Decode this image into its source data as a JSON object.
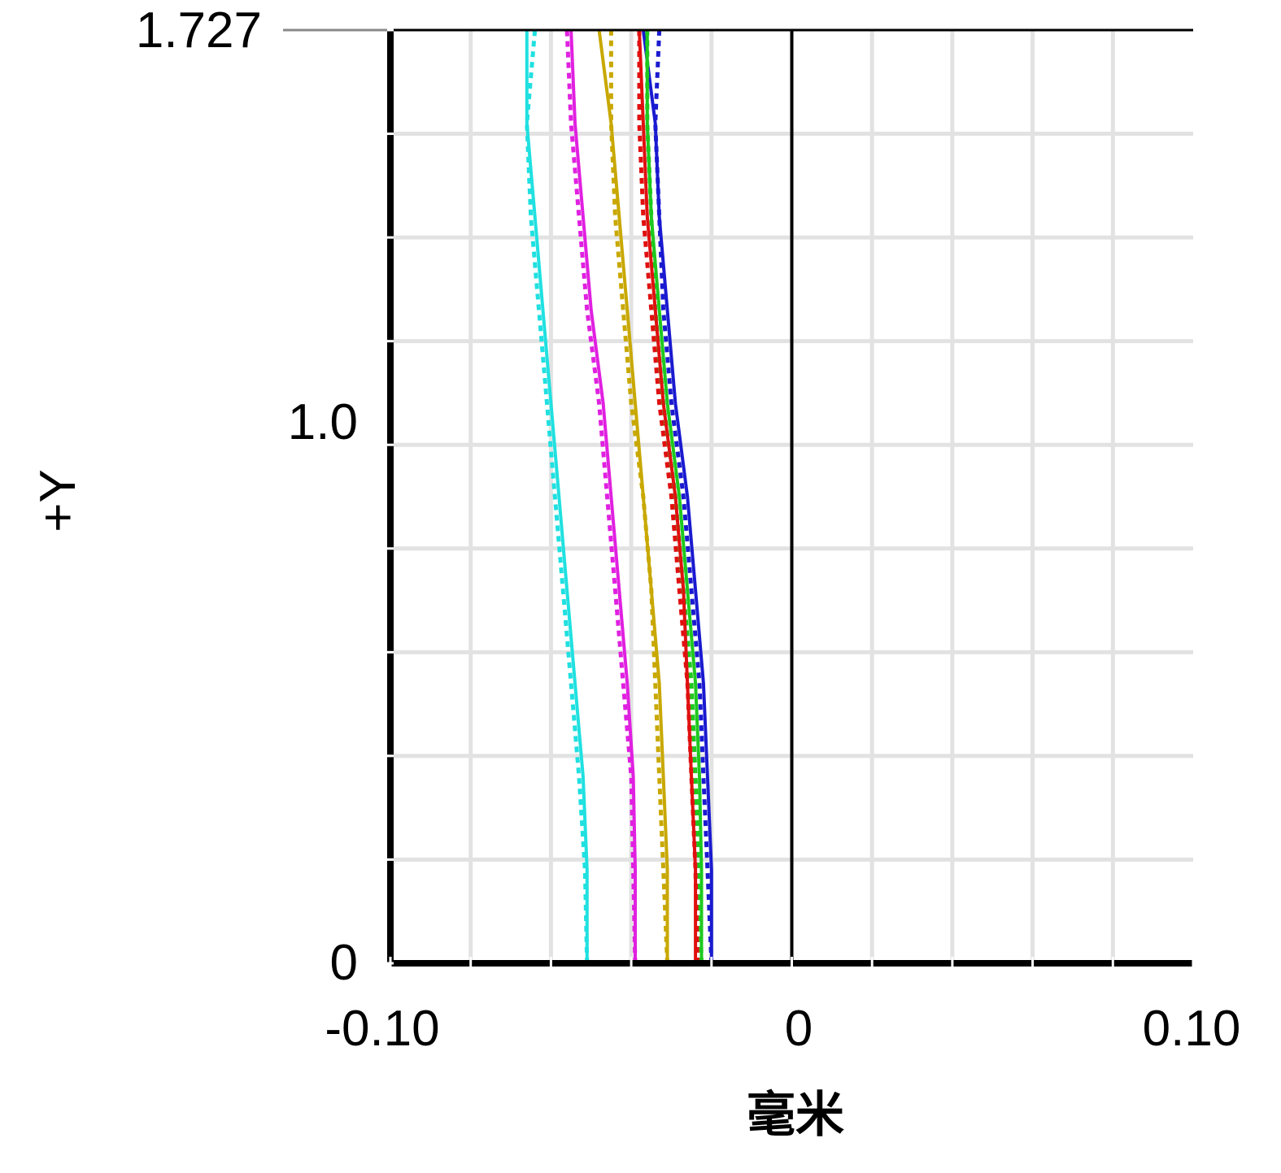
{
  "chart_data": {
    "type": "line",
    "title": "",
    "xlabel": "毫米",
    "ylabel": "+Y",
    "xlim": [
      -0.1,
      0.1
    ],
    "ylim": [
      0,
      1.727
    ],
    "x_ticks": [
      "-0.10",
      "0",
      "0.10"
    ],
    "y_ticks": [
      "0",
      "1.0",
      "1.727"
    ],
    "grid": true,
    "legend": "none",
    "y_sample_points": [
      0,
      0.1727,
      0.3454,
      0.5181,
      0.6908,
      0.8635,
      1.0362,
      1.2089,
      1.3816,
      1.5543,
      1.727
    ],
    "series": [
      {
        "color": "#1a1ad0",
        "style": "solid",
        "values": [
          -0.02,
          -0.02,
          -0.021,
          -0.022,
          -0.024,
          -0.026,
          -0.029,
          -0.031,
          -0.033,
          -0.034,
          -0.037
        ]
      },
      {
        "color": "#1a1ad0",
        "style": "dotted",
        "values": [
          -0.02,
          -0.021,
          -0.022,
          -0.023,
          -0.025,
          -0.027,
          -0.03,
          -0.032,
          -0.033,
          -0.034,
          -0.033
        ]
      },
      {
        "color": "#1ec81e",
        "style": "solid",
        "values": [
          -0.0225,
          -0.0225,
          -0.023,
          -0.024,
          -0.026,
          -0.028,
          -0.031,
          -0.033,
          -0.035,
          -0.036,
          -0.036
        ]
      },
      {
        "color": "#1ec81e",
        "style": "dotted",
        "values": [
          -0.0225,
          -0.023,
          -0.024,
          -0.025,
          -0.027,
          -0.029,
          -0.032,
          -0.034,
          -0.035,
          -0.036,
          -0.036
        ]
      },
      {
        "color": "#e01010",
        "style": "solid",
        "values": [
          -0.024,
          -0.024,
          -0.025,
          -0.026,
          -0.027,
          -0.029,
          -0.032,
          -0.034,
          -0.036,
          -0.037,
          -0.038
        ]
      },
      {
        "color": "#e01010",
        "style": "dotted",
        "values": [
          -0.0235,
          -0.024,
          -0.025,
          -0.026,
          -0.028,
          -0.03,
          -0.033,
          -0.035,
          -0.037,
          -0.038,
          -0.038
        ]
      },
      {
        "color": "#c8a800",
        "style": "solid",
        "values": [
          -0.031,
          -0.031,
          -0.032,
          -0.033,
          -0.035,
          -0.037,
          -0.039,
          -0.041,
          -0.043,
          -0.045,
          -0.048
        ]
      },
      {
        "color": "#c8a800",
        "style": "dotted",
        "values": [
          -0.031,
          -0.032,
          -0.033,
          -0.034,
          -0.035,
          -0.037,
          -0.04,
          -0.042,
          -0.044,
          -0.045,
          -0.045
        ]
      },
      {
        "color": "#e020e0",
        "style": "solid",
        "values": [
          -0.039,
          -0.039,
          -0.0395,
          -0.041,
          -0.043,
          -0.045,
          -0.047,
          -0.05,
          -0.052,
          -0.054,
          -0.055
        ]
      },
      {
        "color": "#e020e0",
        "style": "dotted",
        "values": [
          -0.039,
          -0.0395,
          -0.04,
          -0.042,
          -0.044,
          -0.046,
          -0.048,
          -0.051,
          -0.053,
          -0.055,
          -0.056
        ]
      },
      {
        "color": "#20e0e0",
        "style": "solid",
        "values": [
          -0.051,
          -0.051,
          -0.052,
          -0.054,
          -0.056,
          -0.058,
          -0.06,
          -0.062,
          -0.064,
          -0.066,
          -0.066
        ]
      },
      {
        "color": "#20e0e0",
        "style": "dotted",
        "values": [
          -0.051,
          -0.0515,
          -0.053,
          -0.055,
          -0.057,
          -0.059,
          -0.061,
          -0.063,
          -0.065,
          -0.066,
          -0.064
        ]
      }
    ]
  }
}
